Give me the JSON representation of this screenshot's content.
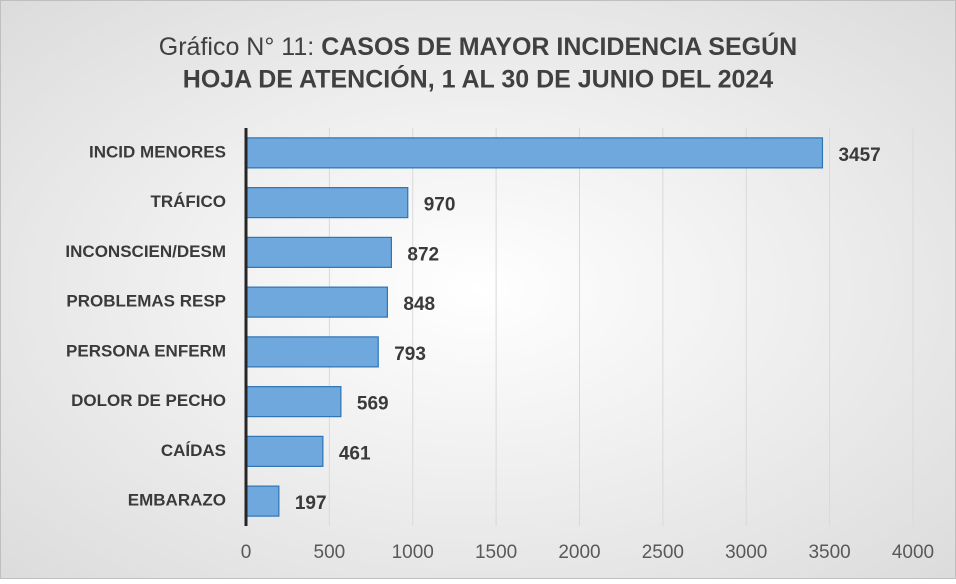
{
  "chart_data": {
    "type": "bar",
    "orientation": "horizontal",
    "title": [
      "Gráfico N° 11:",
      "CASOS DE MAYOR INCIDENCIA SEGÚN",
      "HOJA DE ATENCIÓN, 1 AL 30 DE JUNIO DEL 2024"
    ],
    "categories": [
      "INCID MENORES",
      "TRÁFICO",
      "INCONSCIEN/DESM",
      "PROBLEMAS RESP",
      "PERSONA ENFERM",
      "DOLOR DE PECHO",
      "CAÍDAS",
      "EMBARAZO"
    ],
    "values": [
      3457,
      970,
      872,
      848,
      793,
      569,
      461,
      197
    ],
    "color": "#6fa8dc",
    "edge_color": "#2e75b6",
    "xlim": [
      0,
      4000
    ],
    "xticks": [
      0,
      500,
      1000,
      1500,
      2000,
      2500,
      3000,
      3500,
      4000
    ],
    "grid": true
  }
}
